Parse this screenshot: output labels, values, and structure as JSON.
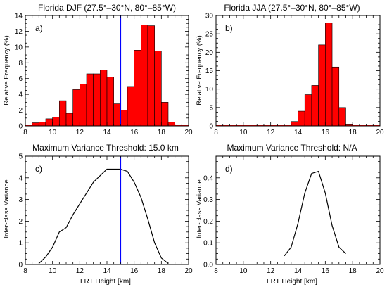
{
  "chart_data": [
    {
      "id": "a",
      "type": "bar",
      "title": "Florida DJF (27.5°–30°N, 80°–85°W)",
      "panel_label": "a)",
      "xlabel": "",
      "ylabel": "Relative Frequency (%)",
      "xlim": [
        8,
        20
      ],
      "ylim": [
        0,
        14
      ],
      "xticks": [
        8,
        10,
        12,
        14,
        16,
        18,
        20
      ],
      "yticks": [
        0,
        2,
        4,
        6,
        8,
        10,
        12,
        14
      ],
      "bin_width": 0.5,
      "bars": [
        {
          "x": 8.5,
          "value": 0.4
        },
        {
          "x": 9.0,
          "value": 0.5
        },
        {
          "x": 9.5,
          "value": 0.9
        },
        {
          "x": 10.0,
          "value": 1.1
        },
        {
          "x": 10.5,
          "value": 3.2
        },
        {
          "x": 11.0,
          "value": 1.6
        },
        {
          "x": 11.5,
          "value": 4.6
        },
        {
          "x": 12.0,
          "value": 5.3
        },
        {
          "x": 12.5,
          "value": 6.6
        },
        {
          "x": 13.0,
          "value": 6.6
        },
        {
          "x": 13.5,
          "value": 7.1
        },
        {
          "x": 14.0,
          "value": 6.2
        },
        {
          "x": 14.5,
          "value": 2.8
        },
        {
          "x": 15.0,
          "value": 2.0
        },
        {
          "x": 15.5,
          "value": 5.0
        },
        {
          "x": 16.0,
          "value": 9.6
        },
        {
          "x": 16.5,
          "value": 12.8
        },
        {
          "x": 17.0,
          "value": 12.7
        },
        {
          "x": 17.5,
          "value": 9.5
        },
        {
          "x": 18.0,
          "value": 3.0
        },
        {
          "x": 18.5,
          "value": 0.5
        }
      ],
      "vline": 15.0,
      "bar_color": "#ff0000",
      "vline_color": "#0000ff"
    },
    {
      "id": "b",
      "type": "bar",
      "title": "Florida JJA (27.5°–30°N, 80°–85°W)",
      "panel_label": "b)",
      "xlabel": "",
      "ylabel": "Relative Frequency (%)",
      "xlim": [
        8,
        20
      ],
      "ylim": [
        0,
        30
      ],
      "xticks": [
        8,
        10,
        12,
        14,
        16,
        18,
        20
      ],
      "yticks": [
        0,
        5,
        10,
        15,
        20,
        25,
        30
      ],
      "bin_width": 0.5,
      "bars": [
        {
          "x": 13.0,
          "value": 0.2
        },
        {
          "x": 13.5,
          "value": 1.2
        },
        {
          "x": 14.0,
          "value": 4.0
        },
        {
          "x": 14.5,
          "value": 8.5
        },
        {
          "x": 15.0,
          "value": 11.0
        },
        {
          "x": 15.5,
          "value": 22.0
        },
        {
          "x": 16.0,
          "value": 28.0
        },
        {
          "x": 16.5,
          "value": 16.0
        },
        {
          "x": 17.0,
          "value": 5.0
        },
        {
          "x": 17.5,
          "value": 0.5
        }
      ],
      "bar_color": "#ff0000"
    },
    {
      "id": "c",
      "type": "line",
      "title": "Maximum Variance Threshold: 15.0 km",
      "panel_label": "c)",
      "xlabel": "LRT Height [km]",
      "ylabel": "Inter-class Variance",
      "xlim": [
        8,
        20
      ],
      "ylim": [
        0,
        5
      ],
      "xticks": [
        8,
        10,
        12,
        14,
        16,
        18,
        20
      ],
      "yticks": [
        0,
        1,
        2,
        3,
        4,
        5
      ],
      "x": [
        9.0,
        9.5,
        10.0,
        10.5,
        11.0,
        11.5,
        12.0,
        12.5,
        13.0,
        13.5,
        14.0,
        14.5,
        15.0,
        15.5,
        16.0,
        16.5,
        17.0,
        17.5,
        18.0,
        18.5
      ],
      "y": [
        0.05,
        0.35,
        0.8,
        1.5,
        1.7,
        2.3,
        2.8,
        3.3,
        3.8,
        4.1,
        4.4,
        4.4,
        4.4,
        4.3,
        3.8,
        3.1,
        2.1,
        1.0,
        0.3,
        0.05
      ],
      "vline": 15.0,
      "line_color": "#000000",
      "vline_color": "#0000ff"
    },
    {
      "id": "d",
      "type": "line",
      "title": "Maximum Variance Threshold: N/A",
      "panel_label": "d)",
      "xlabel": "LRT Height [km]",
      "ylabel": "Inter-class Variance",
      "xlim": [
        8,
        20
      ],
      "ylim": [
        0,
        0.5
      ],
      "xticks": [
        8,
        10,
        12,
        14,
        16,
        18,
        20
      ],
      "yticks": [
        0.0,
        0.1,
        0.2,
        0.3,
        0.4
      ],
      "x": [
        13.0,
        13.5,
        14.0,
        14.5,
        15.0,
        15.5,
        16.0,
        16.5,
        17.0,
        17.5
      ],
      "y": [
        0.04,
        0.08,
        0.19,
        0.33,
        0.42,
        0.43,
        0.33,
        0.18,
        0.08,
        0.05
      ],
      "line_color": "#000000"
    }
  ]
}
